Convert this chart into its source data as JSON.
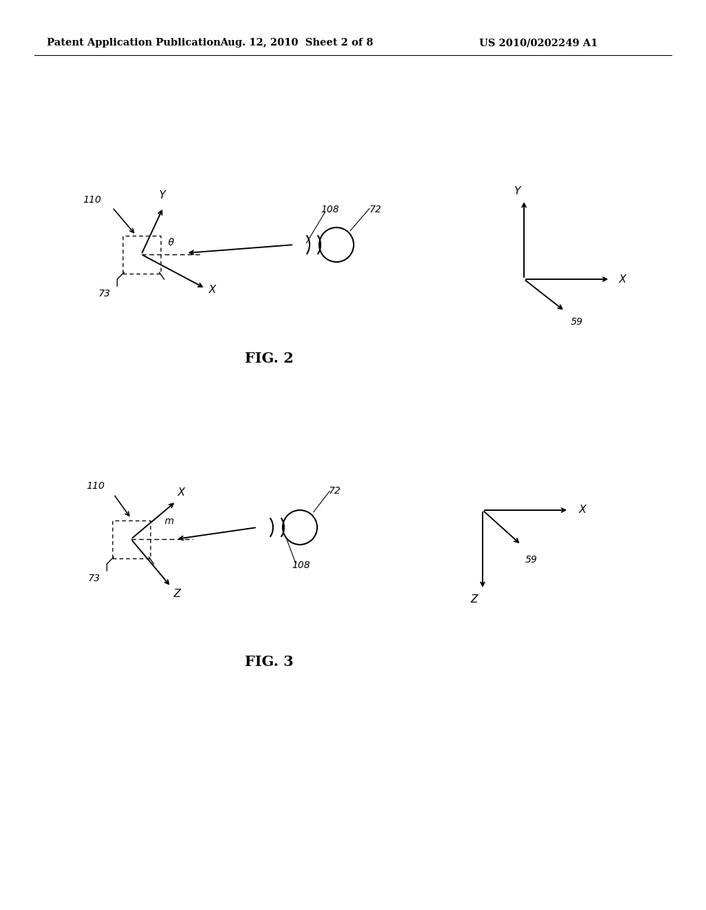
{
  "header_left": "Patent Application Publication",
  "header_mid": "Aug. 12, 2010  Sheet 2 of 8",
  "header_right": "US 2010/0202249 A1",
  "fig2_label": "FIG. 2",
  "fig3_label": "FIG. 3",
  "bg_color": "#ffffff",
  "line_color": "#000000",
  "header_fontsize": 10.5,
  "fig_label_fontsize": 15,
  "anno_fontsize": 10,
  "axis_label_fontsize": 11
}
